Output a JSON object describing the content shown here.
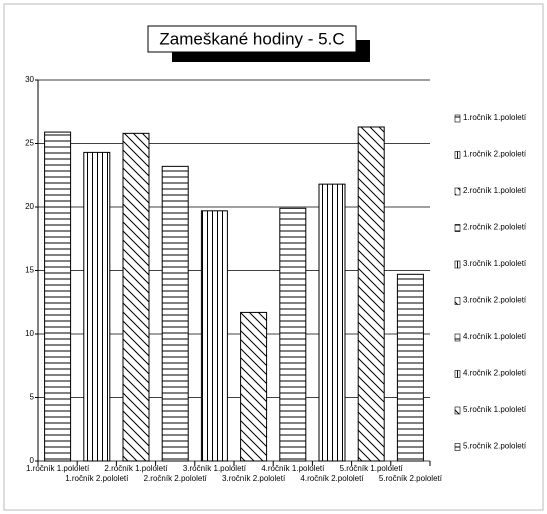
{
  "chart_data": {
    "type": "bar",
    "title": "Zameškané hodiny - 5.C",
    "categories": [
      "1.ročník 1.pololetí",
      "1.ročník 2.pololetí",
      "2.ročník 1.pololetí",
      "2.ročník 2.pololetí",
      "3.ročník 1.pololetí",
      "3.ročník 2.pololetí",
      "4.ročník 1.pololetí",
      "4.ročník 2.pololetí",
      "5.ročník 1.pololetí",
      "5.ročník 2.pololetí"
    ],
    "values": [
      25.9,
      24.3,
      25.8,
      23.2,
      19.7,
      11.7,
      19.9,
      21.8,
      26.3,
      14.7
    ],
    "color": "#000000",
    "ylim": [
      0,
      30
    ],
    "yticks": [
      0,
      5,
      10,
      15,
      20,
      25,
      30
    ],
    "grid": true
  }
}
